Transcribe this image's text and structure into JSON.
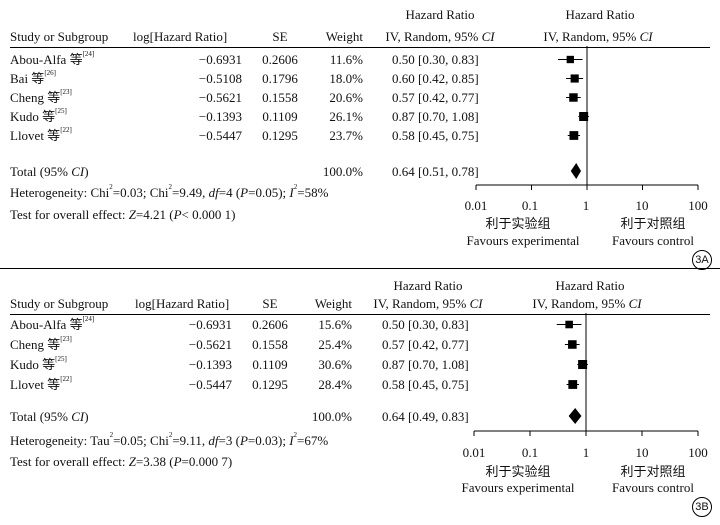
{
  "headers": {
    "study": "Study or Subgroup",
    "loghr": "log[Hazard Ratio]",
    "se": "SE",
    "weight": "Weight",
    "hr_title": "Hazard Ratio",
    "hr_sub": "IV, Random, 95% ",
    "ci_italic": "CI"
  },
  "axis": {
    "ticks": [
      0.01,
      0.1,
      1,
      10,
      100
    ],
    "tick_labels": [
      "0.01",
      "0.1",
      "1",
      "10",
      "100"
    ],
    "left_cn": "利于实验组",
    "left_en": "Favours experimental",
    "right_cn": "利于对照组",
    "right_en": "Favours control"
  },
  "chart_data": [
    {
      "type": "forest",
      "panel_label": "3A",
      "x_scale": "log",
      "xlim": [
        0.01,
        100
      ],
      "reference_line": 1,
      "studies": [
        {
          "name": "Abou-Alfa 等",
          "ref": "[24]",
          "loghr": "−0.6931",
          "se": "0.2606",
          "weight": "11.6%",
          "ci_text": "0.50 [0.30, 0.83]",
          "hr": 0.5,
          "lo": 0.3,
          "hi": 0.83,
          "w": 11.6
        },
        {
          "name": "Bai 等",
          "ref": "[26]",
          "loghr": "−0.5108",
          "se": "0.1796",
          "weight": "18.0%",
          "ci_text": "0.60 [0.42, 0.85]",
          "hr": 0.6,
          "lo": 0.42,
          "hi": 0.85,
          "w": 18.0
        },
        {
          "name": "Cheng 等",
          "ref": "[23]",
          "loghr": "−0.5621",
          "se": "0.1558",
          "weight": "20.6%",
          "ci_text": "0.57 [0.42, 0.77]",
          "hr": 0.57,
          "lo": 0.42,
          "hi": 0.77,
          "w": 20.6
        },
        {
          "name": "Kudo 等",
          "ref": "[25]",
          "loghr": "−0.1393",
          "se": "0.1109",
          "weight": "26.1%",
          "ci_text": "0.87 [0.70, 1.08]",
          "hr": 0.87,
          "lo": 0.7,
          "hi": 1.08,
          "w": 26.1
        },
        {
          "name": "Llovet 等",
          "ref": "[22]",
          "loghr": "−0.5447",
          "se": "0.1295",
          "weight": "23.7%",
          "ci_text": "0.58 [0.45, 0.75]",
          "hr": 0.58,
          "lo": 0.45,
          "hi": 0.75,
          "w": 23.7
        }
      ],
      "total": {
        "label": "Total (95% ",
        "label_italic": "CI",
        "label_end": ")",
        "weight": "100.0%",
        "ci_text": "0.64 [0.51, 0.78]",
        "hr": 0.64,
        "lo": 0.51,
        "hi": 0.78
      },
      "heterogeneity": {
        "prefix": "Heterogeneity: Chi",
        "s1": "=0.03; Chi",
        "s2": "=9.49, ",
        "df": "df",
        "s3": "=4 (",
        "p": "P",
        "s4": "=0.05); ",
        "i": "I",
        "s5": "=58%"
      },
      "overall": {
        "prefix": "Test for overall effect: ",
        "z": "Z",
        "s1": "=4.21 (",
        "p": "P",
        "s2": "< 0.000 1)"
      }
    },
    {
      "type": "forest",
      "panel_label": "3B",
      "x_scale": "log",
      "xlim": [
        0.01,
        100
      ],
      "reference_line": 1,
      "studies": [
        {
          "name": "Abou-Alfa 等",
          "ref": "[24]",
          "loghr": "−0.6931",
          "se": "0.2606",
          "weight": "15.6%",
          "ci_text": "0.50 [0.30, 0.83]",
          "hr": 0.5,
          "lo": 0.3,
          "hi": 0.83,
          "w": 15.6
        },
        {
          "name": "Cheng 等",
          "ref": "[23]",
          "loghr": "−0.5621",
          "se": "0.1558",
          "weight": "25.4%",
          "ci_text": "0.57 [0.42, 0.77]",
          "hr": 0.57,
          "lo": 0.42,
          "hi": 0.77,
          "w": 25.4
        },
        {
          "name": "Kudo 等",
          "ref": "[25]",
          "loghr": "−0.1393",
          "se": "0.1109",
          "weight": "30.6%",
          "ci_text": "0.87 [0.70, 1.08]",
          "hr": 0.87,
          "lo": 0.7,
          "hi": 1.08,
          "w": 30.6
        },
        {
          "name": "Llovet 等",
          "ref": "[22]",
          "loghr": "−0.5447",
          "se": "0.1295",
          "weight": "28.4%",
          "ci_text": "0.58 [0.45, 0.75]",
          "hr": 0.58,
          "lo": 0.45,
          "hi": 0.75,
          "w": 28.4
        }
      ],
      "total": {
        "label": "Total (95% ",
        "label_italic": "CI",
        "label_end": ")",
        "weight": "100.0%",
        "ci_text": "0.64 [0.49, 0.83]",
        "hr": 0.64,
        "lo": 0.49,
        "hi": 0.83
      },
      "heterogeneity": {
        "prefix": "Heterogeneity: Tau",
        "s0": "=0.05; Chi",
        "s1": "=9.11, ",
        "df": "df",
        "s3": "=3 (",
        "p": "P",
        "s4": "=0.03); ",
        "i": "I",
        "s5": "=67%"
      },
      "overall": {
        "prefix": "Test for overall effect: ",
        "z": "Z",
        "s1": "=3.38 (",
        "p": "P",
        "s2": "=0.000 7)"
      }
    }
  ]
}
